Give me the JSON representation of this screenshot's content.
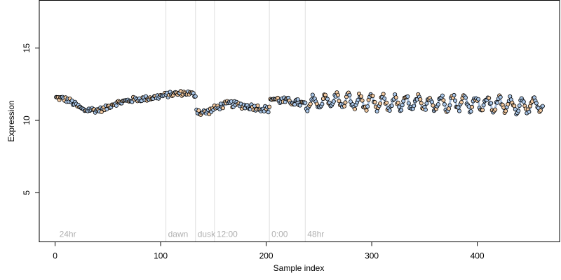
{
  "chart_data": {
    "type": "scatter",
    "title": "",
    "xlabel": "Sample index",
    "ylabel": "Expression",
    "xlim": [
      -15,
      478
    ],
    "ylim": [
      1.6,
      18.3
    ],
    "xticks": [
      0,
      100,
      200,
      300,
      400
    ],
    "yticks": [
      5,
      10,
      15
    ],
    "grid": false,
    "legend": "none",
    "point_colors": {
      "light": "#a9c6e8",
      "dark": "#f2c9a0"
    },
    "trend_color": "#9fb8d8",
    "annotations": [
      {
        "x": 2,
        "label": "24hr",
        "line": false
      },
      {
        "x": 105,
        "label": "dawn",
        "line": true
      },
      {
        "x": 133,
        "label": "dusk",
        "line": true
      },
      {
        "x": 151,
        "label": "12:00",
        "line": true
      },
      {
        "x": 203,
        "label": "0:00",
        "line": true
      },
      {
        "x": 237,
        "label": "48hr",
        "line": true
      }
    ],
    "segments": [
      {
        "x_start": 1,
        "x_end": 133,
        "knots": [
          [
            1,
            11.55
          ],
          [
            8,
            11.5
          ],
          [
            14,
            11.35
          ],
          [
            20,
            11.05
          ],
          [
            27,
            10.7
          ],
          [
            33,
            10.75
          ],
          [
            40,
            10.7
          ],
          [
            47,
            10.8
          ],
          [
            55,
            11.15
          ],
          [
            65,
            11.3
          ],
          [
            75,
            11.45
          ],
          [
            85,
            11.5
          ],
          [
            95,
            11.6
          ],
          [
            105,
            11.75
          ],
          [
            115,
            11.85
          ],
          [
            125,
            11.9
          ],
          [
            133,
            11.75
          ]
        ],
        "noise": 0.18,
        "osc_amp": 0,
        "osc_period": 12
      },
      {
        "x_start": 134,
        "x_end": 203,
        "knots": [
          [
            134,
            10.75
          ],
          [
            138,
            10.5
          ],
          [
            145,
            10.6
          ],
          [
            155,
            10.95
          ],
          [
            165,
            11.15
          ],
          [
            175,
            11.05
          ],
          [
            185,
            10.95
          ],
          [
            195,
            10.85
          ],
          [
            203,
            10.75
          ]
        ],
        "noise": 0.22,
        "osc_amp": 0,
        "osc_period": 12
      },
      {
        "x_start": 204,
        "x_end": 237,
        "knots": [
          [
            204,
            11.55
          ],
          [
            215,
            11.35
          ],
          [
            225,
            11.3
          ],
          [
            237,
            11.1
          ]
        ],
        "noise": 0.25,
        "osc_amp": 0,
        "osc_period": 12
      },
      {
        "x_start": 238,
        "x_end": 462,
        "knots": [
          [
            238,
            11.1
          ],
          [
            260,
            11.4
          ],
          [
            300,
            11.2
          ],
          [
            340,
            11.15
          ],
          [
            380,
            11.25
          ],
          [
            420,
            11.1
          ],
          [
            462,
            11.0
          ]
        ],
        "noise": 0.2,
        "osc_amp": 0.45,
        "osc_period": 11
      }
    ]
  }
}
